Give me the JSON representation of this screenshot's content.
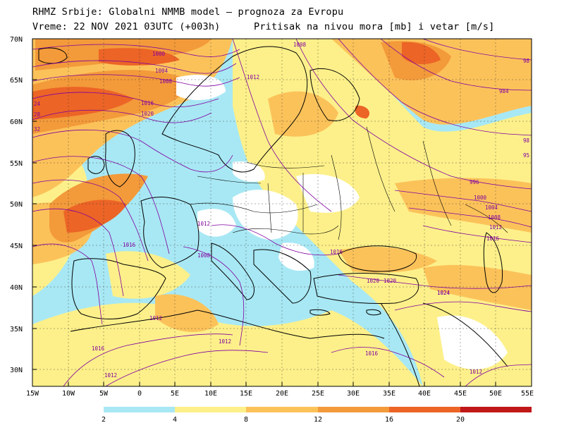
{
  "header": {
    "line1": "RHMZ Srbije: Globalni NMMB model — prognoza za Evropu",
    "line2": "Vreme: 22 NOV 2021 03UTC (+003h)",
    "field": "Pritisak na nivou mora [mb] i vetar [m/s]"
  },
  "map": {
    "lat_range": [
      28,
      70
    ],
    "lon_range": [
      -15,
      55
    ],
    "lat_ticks": [
      "70N",
      "65N",
      "60N",
      "55N",
      "50N",
      "45N",
      "40N",
      "35N",
      "30N"
    ],
    "lon_ticks": [
      "15W",
      "10W",
      "5W",
      "0",
      "5E",
      "10E",
      "15E",
      "20E",
      "25E",
      "30E",
      "35E",
      "40E",
      "45E",
      "50E",
      "55E"
    ],
    "isobar_labels": [
      "1000",
      "1004",
      "1008",
      "1012",
      "1016",
      "1020",
      "1024",
      "996",
      "984",
      "1008",
      "1012",
      "1016",
      "1020",
      "1024",
      "1008",
      "1012",
      "1016",
      "1016",
      "1012",
      "1012",
      "1016",
      "1012",
      "1000",
      "1004",
      "1008",
      "1012",
      "1016",
      "1020",
      "24",
      "28",
      "32",
      "98",
      "98",
      "95"
    ]
  },
  "colorbar": {
    "labels": [
      "2",
      "4",
      "8",
      "12",
      "16",
      "20"
    ],
    "colors": [
      "#a8e8f4",
      "#fdf08a",
      "#fcc25a",
      "#f39a3a",
      "#ec6426",
      "#c01818"
    ]
  }
}
